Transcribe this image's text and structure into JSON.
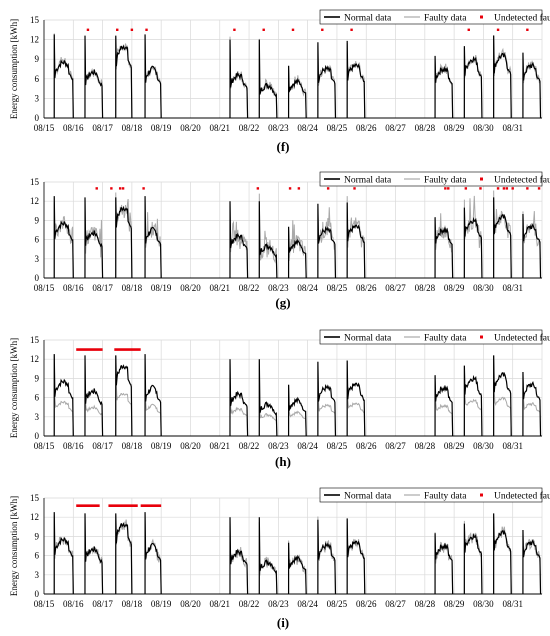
{
  "chart_data": [
    {
      "type": "line",
      "label": "(f)",
      "ylabel": "Energy consumption [kWh]",
      "ylim": [
        0,
        15
      ],
      "yticks": [
        0,
        3,
        6,
        9,
        12,
        15
      ],
      "categories": [
        "08/15",
        "08/16",
        "08/17",
        "08/18",
        "08/19",
        "08/20",
        "08/21",
        "08/22",
        "08/23",
        "08/24",
        "08/25",
        "08/26",
        "08/27",
        "08/28",
        "08/29",
        "08/30",
        "08/31"
      ],
      "grid": true,
      "legend": [
        "Normal data",
        "Faulty data",
        "Undetected fault"
      ],
      "legend_position": "top-right",
      "fault_mode": "spiky_small",
      "undetected_faults": [
        {
          "day": 1.5,
          "level": 13.5
        },
        {
          "day": 2.5,
          "level": 13.5
        },
        {
          "day": 3.0,
          "level": 13.5
        },
        {
          "day": 3.5,
          "level": 13.5
        },
        {
          "day": 6.5,
          "level": 13.5
        },
        {
          "day": 7.5,
          "level": 13.5
        },
        {
          "day": 8.5,
          "level": 13.5
        },
        {
          "day": 9.5,
          "level": 13.5
        },
        {
          "day": 10.5,
          "level": 13.5
        },
        {
          "day": 14.5,
          "level": 13.5
        },
        {
          "day": 15.5,
          "level": 13.5
        },
        {
          "day": 16.5,
          "level": 13.5
        }
      ]
    },
    {
      "type": "line",
      "label": "(g)",
      "ylabel": "",
      "ylim": [
        0,
        15
      ],
      "yticks": [
        0,
        3,
        6,
        9,
        12,
        15
      ],
      "categories": [
        "08/15",
        "08/16",
        "08/17",
        "08/18",
        "08/19",
        "08/20",
        "08/21",
        "08/22",
        "08/23",
        "08/24",
        "08/25",
        "08/26",
        "08/27",
        "08/28",
        "08/29",
        "08/30",
        "08/31"
      ],
      "grid": true,
      "legend": [
        "Normal data",
        "Faulty data",
        "Undetected fault"
      ],
      "legend_position": "top-right",
      "fault_mode": "spiky_large",
      "undetected_faults": [
        {
          "day": 1.8,
          "level": 14.0
        },
        {
          "day": 2.3,
          "level": 14.0
        },
        {
          "day": 2.6,
          "level": 14.0
        },
        {
          "day": 2.7,
          "level": 14.0
        },
        {
          "day": 3.4,
          "level": 14.0
        },
        {
          "day": 7.3,
          "level": 14.0
        },
        {
          "day": 8.4,
          "level": 14.0
        },
        {
          "day": 8.7,
          "level": 14.0
        },
        {
          "day": 9.7,
          "level": 14.0
        },
        {
          "day": 10.6,
          "level": 14.0
        },
        {
          "day": 13.7,
          "level": 14.0
        },
        {
          "day": 13.8,
          "level": 14.0
        },
        {
          "day": 14.4,
          "level": 14.0
        },
        {
          "day": 14.9,
          "level": 14.0
        },
        {
          "day": 15.5,
          "level": 14.0
        },
        {
          "day": 15.7,
          "level": 14.0
        },
        {
          "day": 15.8,
          "level": 14.0
        },
        {
          "day": 16.0,
          "level": 14.0
        },
        {
          "day": 16.5,
          "level": 14.0
        },
        {
          "day": 16.9,
          "level": 14.0
        }
      ]
    },
    {
      "type": "line",
      "label": "(h)",
      "ylabel": "Energy consumption [kWh]",
      "ylim": [
        0,
        15
      ],
      "yticks": [
        0,
        3,
        6,
        9,
        12,
        15
      ],
      "categories": [
        "08/15",
        "08/16",
        "08/17",
        "08/18",
        "08/19",
        "08/20",
        "08/21",
        "08/22",
        "08/23",
        "08/24",
        "08/25",
        "08/26",
        "08/27",
        "08/28",
        "08/29",
        "08/30",
        "08/31"
      ],
      "grid": true,
      "legend": [
        "Normal data",
        "Faulty data",
        "Undetected fault"
      ],
      "legend_position": "top-right",
      "fault_mode": "scaled",
      "fault_scale": 0.55,
      "undetected_faults": [
        {
          "day_start": 1.1,
          "day_end": 2.0,
          "level": 13.5
        },
        {
          "day_start": 2.4,
          "day_end": 3.3,
          "level": 13.5
        }
      ]
    },
    {
      "type": "line",
      "label": "(i)",
      "ylabel": "Energy consumption [kWh]",
      "ylim": [
        0,
        15
      ],
      "yticks": [
        0,
        3,
        6,
        9,
        12,
        15
      ],
      "categories": [
        "08/15",
        "08/16",
        "08/17",
        "08/18",
        "08/19",
        "08/20",
        "08/21",
        "08/22",
        "08/23",
        "08/24",
        "08/25",
        "08/26",
        "08/27",
        "08/28",
        "08/29",
        "08/30",
        "08/31"
      ],
      "grid": true,
      "legend": [
        "Normal data",
        "Faulty data",
        "Undetected fault"
      ],
      "legend_position": "top-right",
      "fault_mode": "noisy",
      "undetected_faults": [
        {
          "day_start": 1.1,
          "day_end": 1.9,
          "level": 13.8
        },
        {
          "day_start": 2.2,
          "day_end": 3.2,
          "level": 13.8
        },
        {
          "day_start": 3.3,
          "day_end": 4.0,
          "level": 13.8
        }
      ]
    }
  ],
  "working_days": [
    {
      "start": 0.35,
      "end": 1.0,
      "peak": 12.8,
      "base": 8.5
    },
    {
      "start": 1.4,
      "end": 2.0,
      "peak": 12.6,
      "base": 7.0
    },
    {
      "start": 2.45,
      "end": 3.0,
      "peak": 12.6,
      "base": 11.0
    },
    {
      "start": 3.45,
      "end": 4.0,
      "peak": 12.8,
      "base": 7.5
    },
    {
      "start": 6.35,
      "end": 6.95,
      "peak": 12.0,
      "base": 6.5
    },
    {
      "start": 7.35,
      "end": 7.95,
      "peak": 12.0,
      "base": 5.0
    },
    {
      "start": 8.35,
      "end": 8.95,
      "peak": 8.0,
      "base": 5.5
    },
    {
      "start": 9.35,
      "end": 9.95,
      "peak": 11.6,
      "base": 7.5
    },
    {
      "start": 10.35,
      "end": 10.95,
      "peak": 11.8,
      "base": 8.0
    },
    {
      "start": 13.35,
      "end": 13.95,
      "peak": 9.5,
      "base": 7.5
    },
    {
      "start": 14.35,
      "end": 14.95,
      "peak": 11.0,
      "base": 9.0
    },
    {
      "start": 15.35,
      "end": 15.95,
      "peak": 12.6,
      "base": 9.5
    },
    {
      "start": 16.35,
      "end": 16.95,
      "peak": 10.0,
      "base": 8.0
    }
  ],
  "colors": {
    "normal": "#000000",
    "faulty": "#a9a9a9",
    "fault_marker": "#e8000b",
    "grid": "#d9d9d9",
    "axis": "#000000"
  }
}
